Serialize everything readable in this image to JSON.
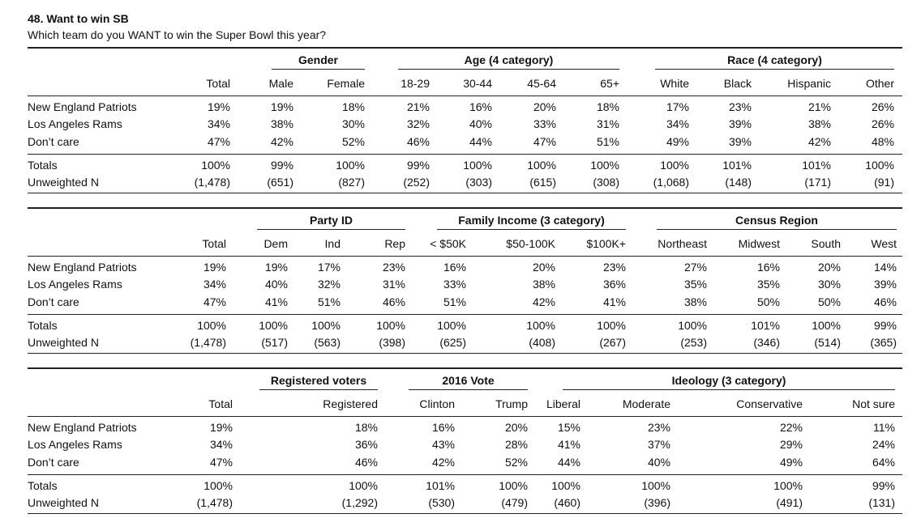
{
  "title": "48. Want to win SB",
  "subtitle": "Which team do you WANT to win the Super Bowl this year?",
  "row_labels": [
    "New England Patriots",
    "Los Angeles Rams",
    "Don’t care",
    "Totals",
    "Unweighted N"
  ],
  "tables": [
    {
      "groups": [
        {
          "label": "Gender"
        },
        {
          "label": "Age (4 category)"
        },
        {
          "label": "Race (4 category)"
        }
      ],
      "columns": [
        "Total",
        "Male",
        "Female",
        "18-29",
        "30-44",
        "45-64",
        "65+",
        "White",
        "Black",
        "Hispanic",
        "Other"
      ],
      "rows": [
        [
          "19%",
          "19%",
          "18%",
          "21%",
          "16%",
          "20%",
          "18%",
          "17%",
          "23%",
          "21%",
          "26%"
        ],
        [
          "34%",
          "38%",
          "30%",
          "32%",
          "40%",
          "33%",
          "31%",
          "34%",
          "39%",
          "38%",
          "26%"
        ],
        [
          "47%",
          "42%",
          "52%",
          "46%",
          "44%",
          "47%",
          "51%",
          "49%",
          "39%",
          "42%",
          "48%"
        ],
        [
          "100%",
          "99%",
          "100%",
          "99%",
          "100%",
          "100%",
          "100%",
          "100%",
          "101%",
          "101%",
          "100%"
        ],
        [
          "(1,478)",
          "(651)",
          "(827)",
          "(252)",
          "(303)",
          "(615)",
          "(308)",
          "(1,068)",
          "(148)",
          "(171)",
          "(91)"
        ]
      ]
    },
    {
      "groups": [
        {
          "label": "Party ID"
        },
        {
          "label": "Family Income (3 category)"
        },
        {
          "label": "Census Region"
        }
      ],
      "columns": [
        "Total",
        "Dem",
        "Ind",
        "Rep",
        "< $50K",
        "$50-100K",
        "$100K+",
        "Northeast",
        "Midwest",
        "South",
        "West"
      ],
      "rows": [
        [
          "19%",
          "19%",
          "17%",
          "23%",
          "16%",
          "20%",
          "23%",
          "27%",
          "16%",
          "20%",
          "14%"
        ],
        [
          "34%",
          "40%",
          "32%",
          "31%",
          "33%",
          "38%",
          "36%",
          "35%",
          "35%",
          "30%",
          "39%"
        ],
        [
          "47%",
          "41%",
          "51%",
          "46%",
          "51%",
          "42%",
          "41%",
          "38%",
          "50%",
          "50%",
          "46%"
        ],
        [
          "100%",
          "100%",
          "100%",
          "100%",
          "100%",
          "100%",
          "100%",
          "100%",
          "101%",
          "100%",
          "99%"
        ],
        [
          "(1,478)",
          "(517)",
          "(563)",
          "(398)",
          "(625)",
          "(408)",
          "(267)",
          "(253)",
          "(346)",
          "(514)",
          "(365)"
        ]
      ]
    },
    {
      "groups": [
        {
          "label": "Registered voters"
        },
        {
          "label": "2016 Vote"
        },
        {
          "label": "Ideology (3 category)"
        }
      ],
      "columns": [
        "Total",
        "Registered",
        "Clinton",
        "Trump",
        "Liberal",
        "Moderate",
        "Conservative",
        "Not sure"
      ],
      "rows": [
        [
          "19%",
          "18%",
          "16%",
          "20%",
          "15%",
          "23%",
          "22%",
          "11%"
        ],
        [
          "34%",
          "36%",
          "43%",
          "28%",
          "41%",
          "37%",
          "29%",
          "24%"
        ],
        [
          "47%",
          "46%",
          "42%",
          "52%",
          "44%",
          "40%",
          "49%",
          "64%"
        ],
        [
          "100%",
          "100%",
          "101%",
          "100%",
          "100%",
          "100%",
          "100%",
          "99%"
        ],
        [
          "(1,478)",
          "(1,292)",
          "(530)",
          "(479)",
          "(460)",
          "(396)",
          "(491)",
          "(131)"
        ]
      ]
    }
  ]
}
